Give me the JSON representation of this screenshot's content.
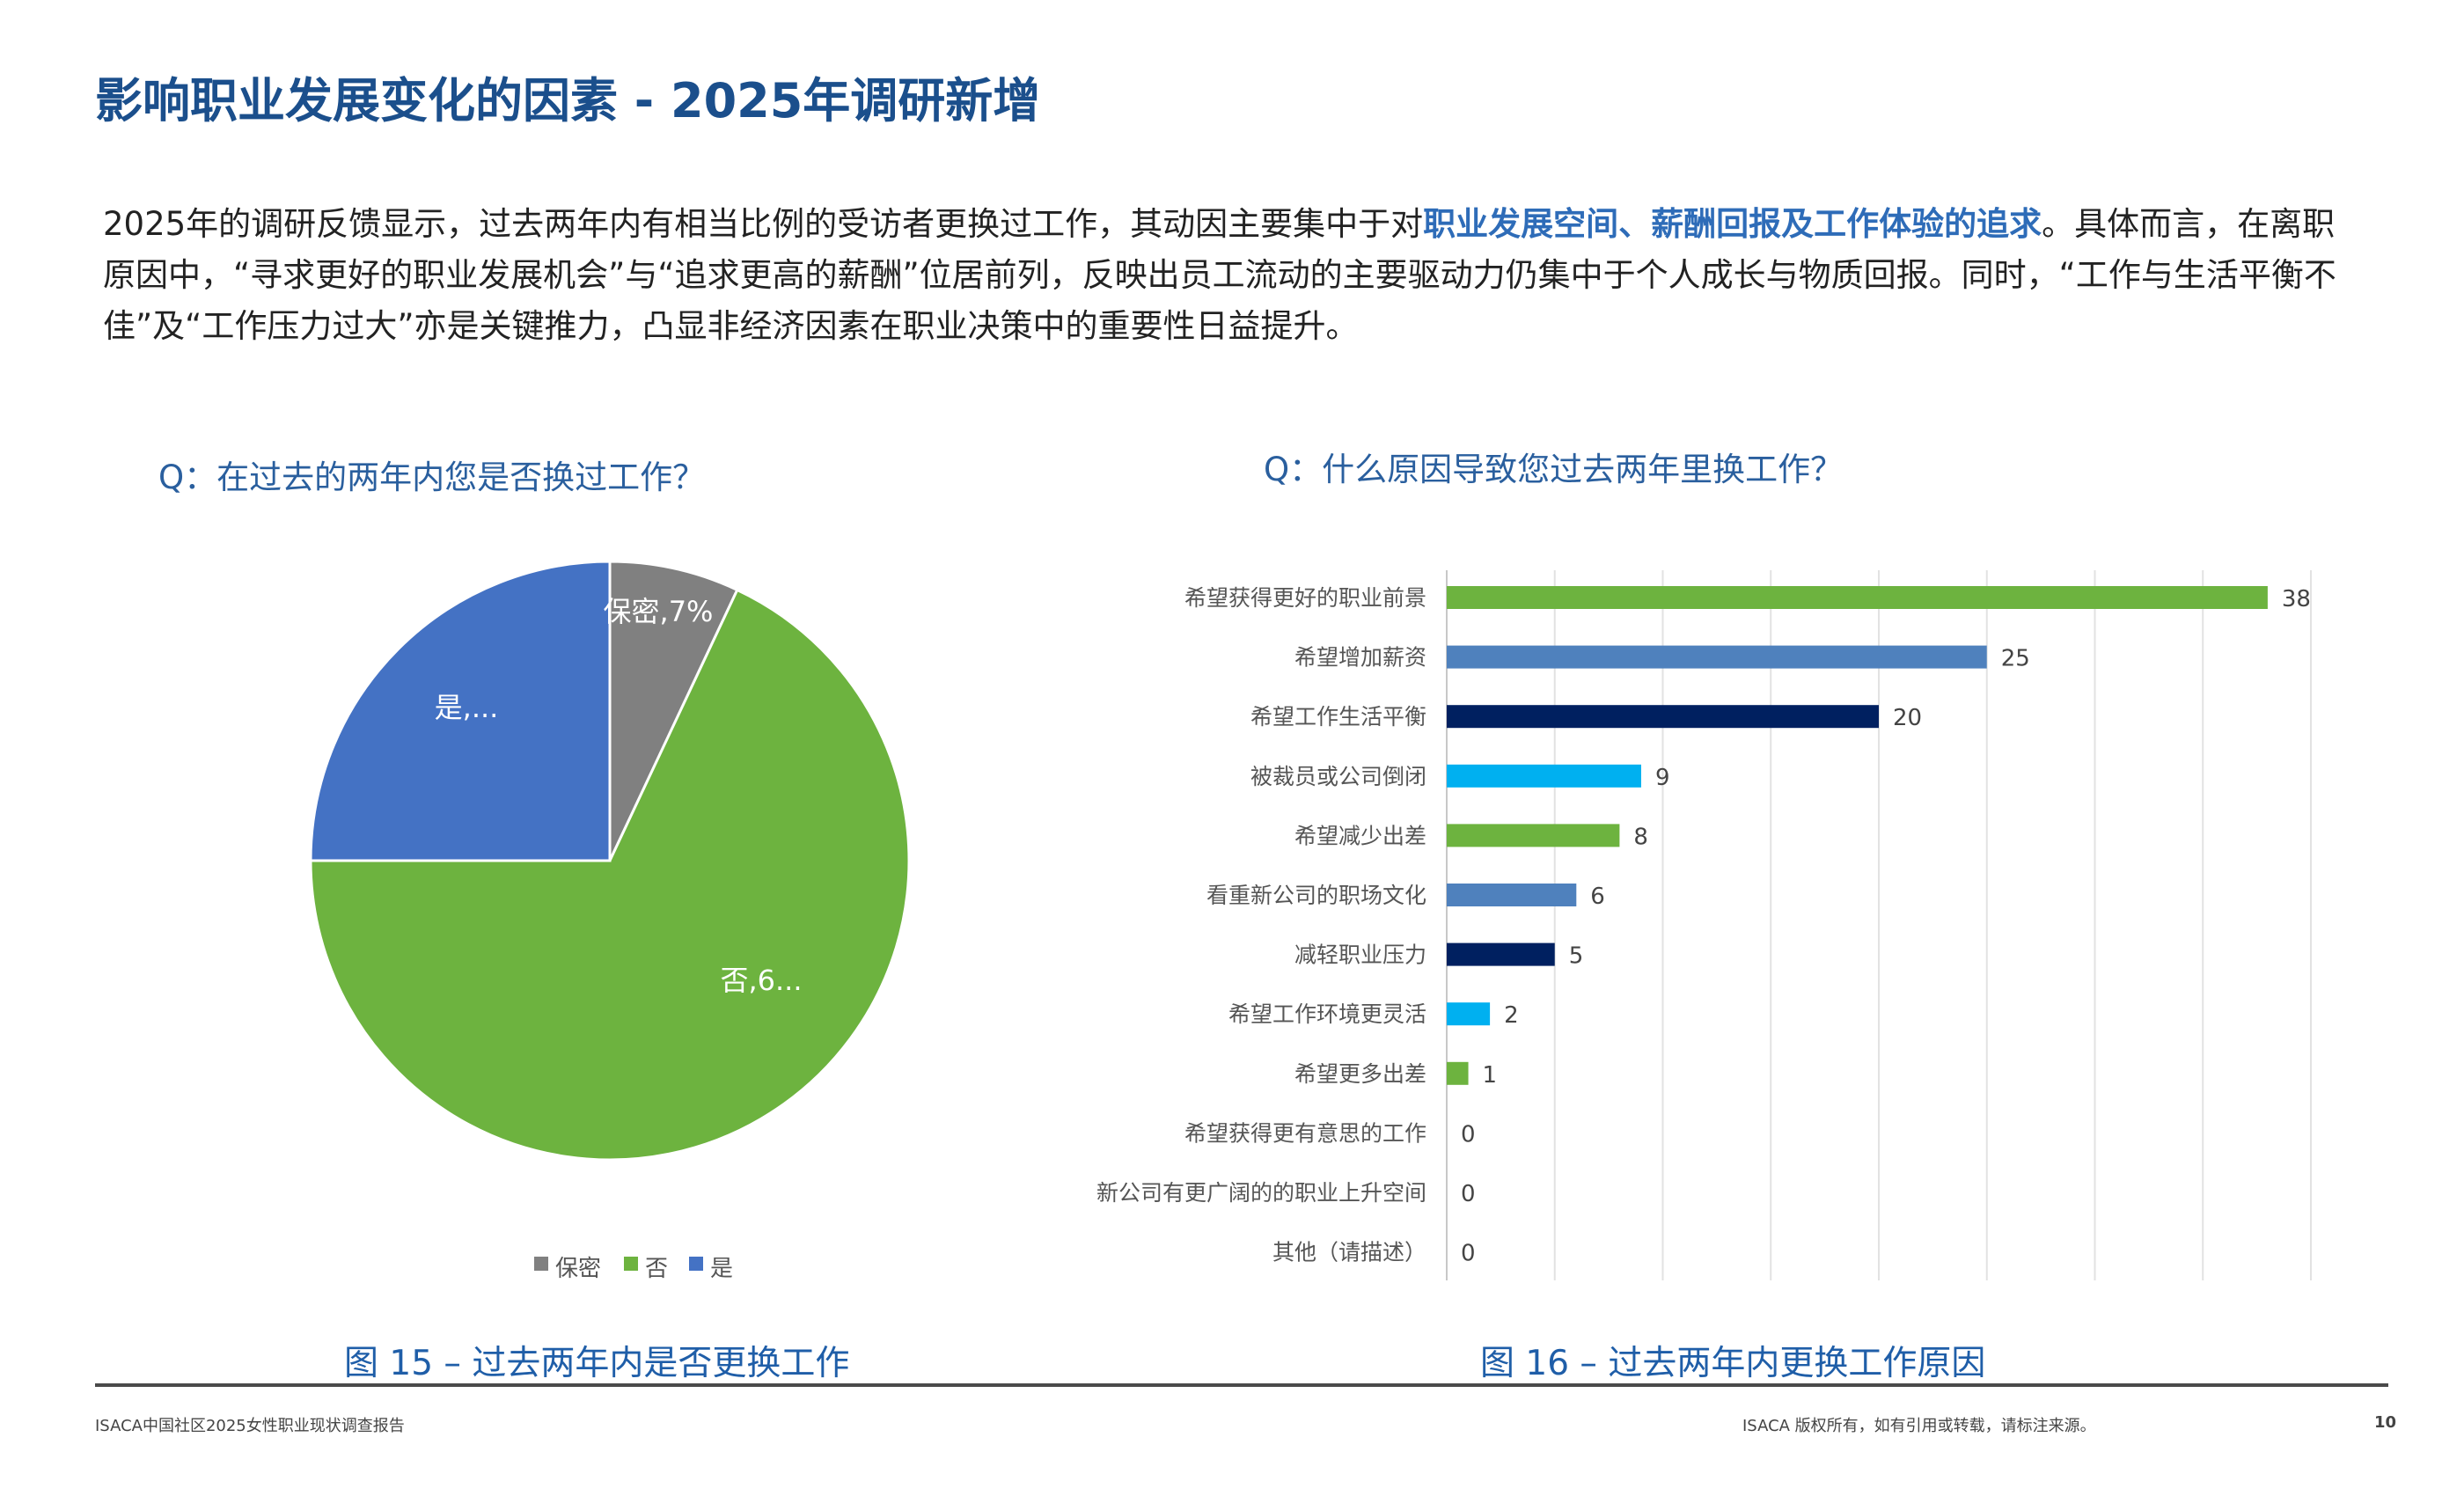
{
  "header": {
    "title": "影响职业发展变化的因素 - 2025年调研新增"
  },
  "intro": {
    "part1": "2025年的调研反馈显示，过去两年内有相当比例的受访者更换过工作，其动因主要集中于对",
    "highlight": "职业发展空间、薪酬回报及工作体验的追求",
    "part2": "。具体而言，在离职原因中，“寻求更好的职业发展机会”与“追求更高的薪酬”位居前列，反映出员工流动的主要驱动力仍集中于个人成长与物质回报。同时，“工作与生活平衡不佳”及“工作压力过大”亦是关键推力，凸显非经济因素在职业决策中的重要性日益提升。"
  },
  "colors": {
    "title": "#1b4f8c",
    "highlight": "#2e6cb8",
    "question": "#2a5f9e"
  },
  "chart_data": [
    {
      "type": "pie",
      "question": "Q：在过去的两年内您是否换过工作？",
      "caption": "图 15 – 过去两年内是否更换工作",
      "legend_position": "bottom",
      "slices": [
        {
          "name": "保密",
          "value": 7,
          "label": "保密,7%",
          "color": "#808080"
        },
        {
          "name": "否",
          "value": 68,
          "label": "否,6...",
          "color": "#6db33f"
        },
        {
          "name": "是",
          "value": 25,
          "label": "是,...",
          "color": "#4472c4"
        }
      ]
    },
    {
      "type": "bar",
      "orientation": "horizontal",
      "question": "Q：什么原因导致您过去两年里换工作？",
      "caption": "图 16 – 过去两年内更换工作原因",
      "xlim": [
        0,
        40
      ],
      "grid": true,
      "categories": [
        "希望获得更好的职业前景",
        "希望增加薪资",
        "希望工作生活平衡",
        "被裁员或公司倒闭",
        "希望减少出差",
        "看重新公司的职场文化",
        "减轻职业压力",
        "希望工作环境更灵活",
        "希望更多出差",
        "希望获得更有意思的工作",
        "新公司有更广阔的的职业上升空间",
        "其他（请描述）"
      ],
      "values": [
        38,
        25,
        20,
        9,
        8,
        6,
        5,
        2,
        1,
        0,
        0,
        0
      ],
      "colors": [
        "#6db33f",
        "#4f81bd",
        "#002060",
        "#00b0f0"
      ]
    }
  ],
  "footer": {
    "left": "ISACA中国社区2025女性职业现状调查报告",
    "right": "ISACA 版权所有，如有引用或转载，请标注来源。",
    "page": "10"
  }
}
